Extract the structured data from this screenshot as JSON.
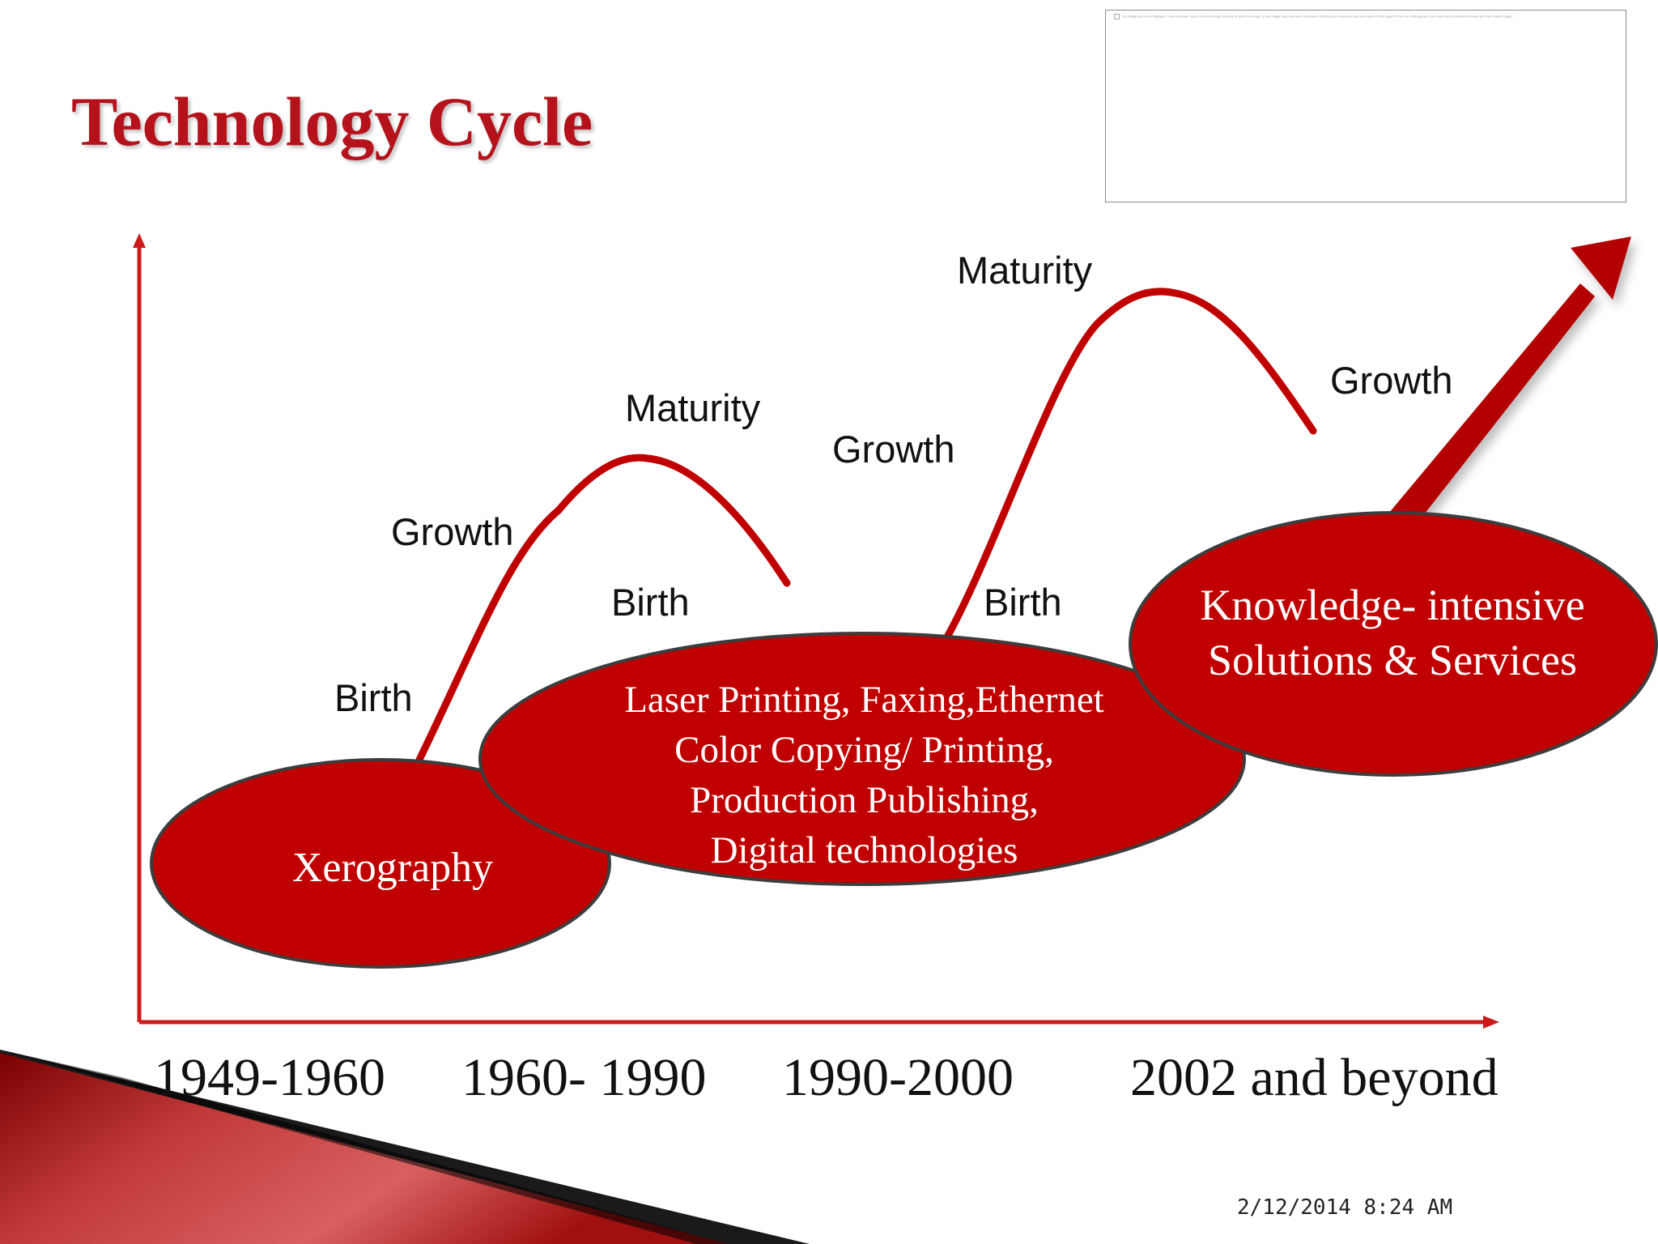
{
  "slide": {
    "title": "Technology Cycle",
    "date_time": "2/12/2014 8:24 AM"
  },
  "placeholder": {
    "broken_image_message": "The image cannot be displayed. Your computer may not have enough memory to open the image, or the image may have been corrupted. Restart your computer, and then open the file again. If the red x still appears, you may have to delete the image and then insert it again."
  },
  "labels": {
    "birth_1": "Birth",
    "growth_1": "Growth",
    "maturity_1": "Maturity",
    "birth_2": "Birth",
    "growth_2": "Growth",
    "maturity_2": "Maturity",
    "birth_3": "Birth",
    "growth_3": "Growth"
  },
  "bubbles": {
    "xerography": "Xerography",
    "laser_lines": [
      "Laser Printing, Faxing,Ethernet",
      "Color Copying/ Printing,",
      "Production Publishing,",
      "Digital technologies"
    ],
    "knowledge_lines": [
      "Knowledge- intensive",
      "Solutions & Services"
    ]
  },
  "periods": [
    "1949-1960",
    "1960- 1990",
    "1990-2000",
    "2002 and beyond"
  ],
  "colors": {
    "accent_red": "#c00000",
    "axis_red": "#cc1a1a",
    "title_red": "#b5121b",
    "bubble_outline": "#3d3d3d"
  }
}
